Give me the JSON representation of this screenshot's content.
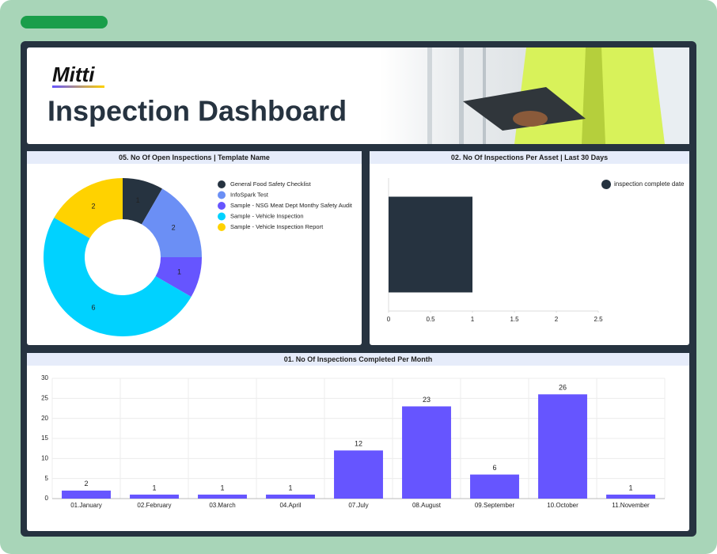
{
  "header": {
    "logo": "Mitti",
    "title": "Inspection Dashboard"
  },
  "chart_data": [
    {
      "type": "pie",
      "donut": true,
      "title": "05. No Of Open Inspections | Template Name",
      "categories": [
        "General Food Safety Checklist",
        "InfoSpark Test",
        "Sample - NSG Meat Dept Monthy Safety Audit",
        "Sample - Vehicle Inspection",
        "Sample - Vehicle Inspection Report"
      ],
      "values": [
        1,
        2,
        1,
        6,
        2
      ],
      "colors": [
        "#263340",
        "#6b8ff5",
        "#6655ff",
        "#00d2ff",
        "#ffd200"
      ],
      "legend": "right"
    },
    {
      "type": "bar",
      "orientation": "horizontal",
      "title": "02. No Of Inspections Per Asset | Last 30 Days",
      "categories": [
        null
      ],
      "series": [
        {
          "name": "inspection complete date",
          "color": "#263340",
          "values": [
            1
          ]
        }
      ],
      "xlim": [
        0,
        2.5
      ],
      "xticks": [
        0,
        0.5,
        1,
        1.5,
        2,
        2.5
      ],
      "legend": "top-right"
    },
    {
      "type": "bar",
      "title": "01. No Of Inspections Completed Per Month",
      "categories": [
        "01.January",
        "02.February",
        "03.March",
        "04.April",
        "07.July",
        "08.August",
        "09.September",
        "10.October",
        "11.November"
      ],
      "values": [
        2,
        1,
        1,
        1,
        12,
        23,
        6,
        26,
        1
      ],
      "color": "#6655ff",
      "ylim": [
        0,
        30
      ],
      "yticks": [
        0,
        5,
        10,
        15,
        20,
        25,
        30
      ],
      "grid": true,
      "data_labels": true
    }
  ]
}
